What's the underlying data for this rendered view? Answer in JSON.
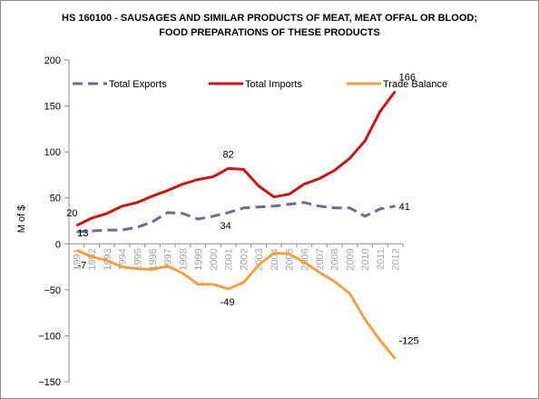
{
  "chart_data": {
    "type": "line",
    "title": "HS 160100 - SAUSAGES AND SIMILAR PRODUCTS OF MEAT, MEAT OFFAL OR BLOOD;",
    "subtitle": "FOOD PREPARATIONS OF THESE PRODUCTS",
    "ylabel": "M of $",
    "xlabel": "",
    "ylim": [
      -150,
      200
    ],
    "yticks": [
      -150,
      -100,
      -50,
      0,
      50,
      100,
      150,
      200
    ],
    "grid": false,
    "legend_position": "top",
    "x": [
      "1991",
      "1992",
      "1993",
      "1994",
      "1995",
      "1996",
      "1997",
      "1998",
      "1999",
      "2000",
      "2001",
      "2002",
      "2003",
      "2004",
      "2005",
      "2006",
      "2007",
      "2008",
      "2009",
      "2010",
      "2011",
      "2012"
    ],
    "series": [
      {
        "name": "Total Exports",
        "color": "#6b6b9a",
        "style": "dashed",
        "values": [
          13,
          14,
          15,
          15,
          18,
          24,
          34,
          33,
          27,
          30,
          34,
          39,
          40,
          41,
          43,
          45,
          41,
          39,
          39,
          30,
          38,
          41
        ]
      },
      {
        "name": "Total Imports",
        "color": "#cc1414",
        "style": "solid",
        "values": [
          20,
          28,
          33,
          41,
          45,
          52,
          58,
          65,
          70,
          73,
          82,
          81,
          63,
          51,
          54,
          65,
          71,
          80,
          93,
          112,
          144,
          166
        ]
      },
      {
        "name": "Trade Balance",
        "color": "#f5a040",
        "style": "solid",
        "values": [
          -7,
          -14,
          -18,
          -25,
          -27,
          -28,
          -24,
          -32,
          -44,
          -44,
          -49,
          -42,
          -23,
          -10,
          -11,
          -20,
          -31,
          -41,
          -54,
          -82,
          -105,
          -125
        ]
      }
    ],
    "annotations": [
      {
        "series": 1,
        "index": 0,
        "text": "20"
      },
      {
        "series": 0,
        "index": 0,
        "text": "13"
      },
      {
        "series": 2,
        "index": 0,
        "text": "-7"
      },
      {
        "series": 1,
        "index": 10,
        "text": "82"
      },
      {
        "series": 0,
        "index": 10,
        "text": "34"
      },
      {
        "series": 2,
        "index": 10,
        "text": "-49"
      },
      {
        "series": 1,
        "index": 21,
        "text": "166"
      },
      {
        "series": 0,
        "index": 21,
        "text": "41"
      },
      {
        "series": 2,
        "index": 21,
        "text": "-125"
      }
    ]
  }
}
